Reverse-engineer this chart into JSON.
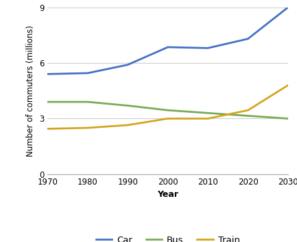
{
  "years": [
    1970,
    1980,
    1990,
    2000,
    2010,
    2020,
    2030
  ],
  "car": [
    5.4,
    5.45,
    5.9,
    6.85,
    6.8,
    7.3,
    9.0
  ],
  "bus": [
    3.9,
    3.9,
    3.7,
    3.45,
    3.3,
    3.15,
    3.0
  ],
  "train": [
    2.45,
    2.5,
    2.65,
    3.0,
    3.0,
    3.45,
    4.8
  ],
  "car_color": "#4472c4",
  "bus_color": "#7aab57",
  "train_color": "#d4a520",
  "ylabel": "Number of commuters (millions)",
  "xlabel": "Year",
  "ylim": [
    0,
    9
  ],
  "yticks": [
    0,
    3,
    6,
    9
  ],
  "xticks": [
    1970,
    1980,
    1990,
    2000,
    2010,
    2020,
    2030
  ],
  "legend_labels": [
    "Car",
    "Bus",
    "Train"
  ],
  "linewidth": 2.0,
  "grid_color": "#d0d0d0",
  "spine_color": "#aaaaaa"
}
